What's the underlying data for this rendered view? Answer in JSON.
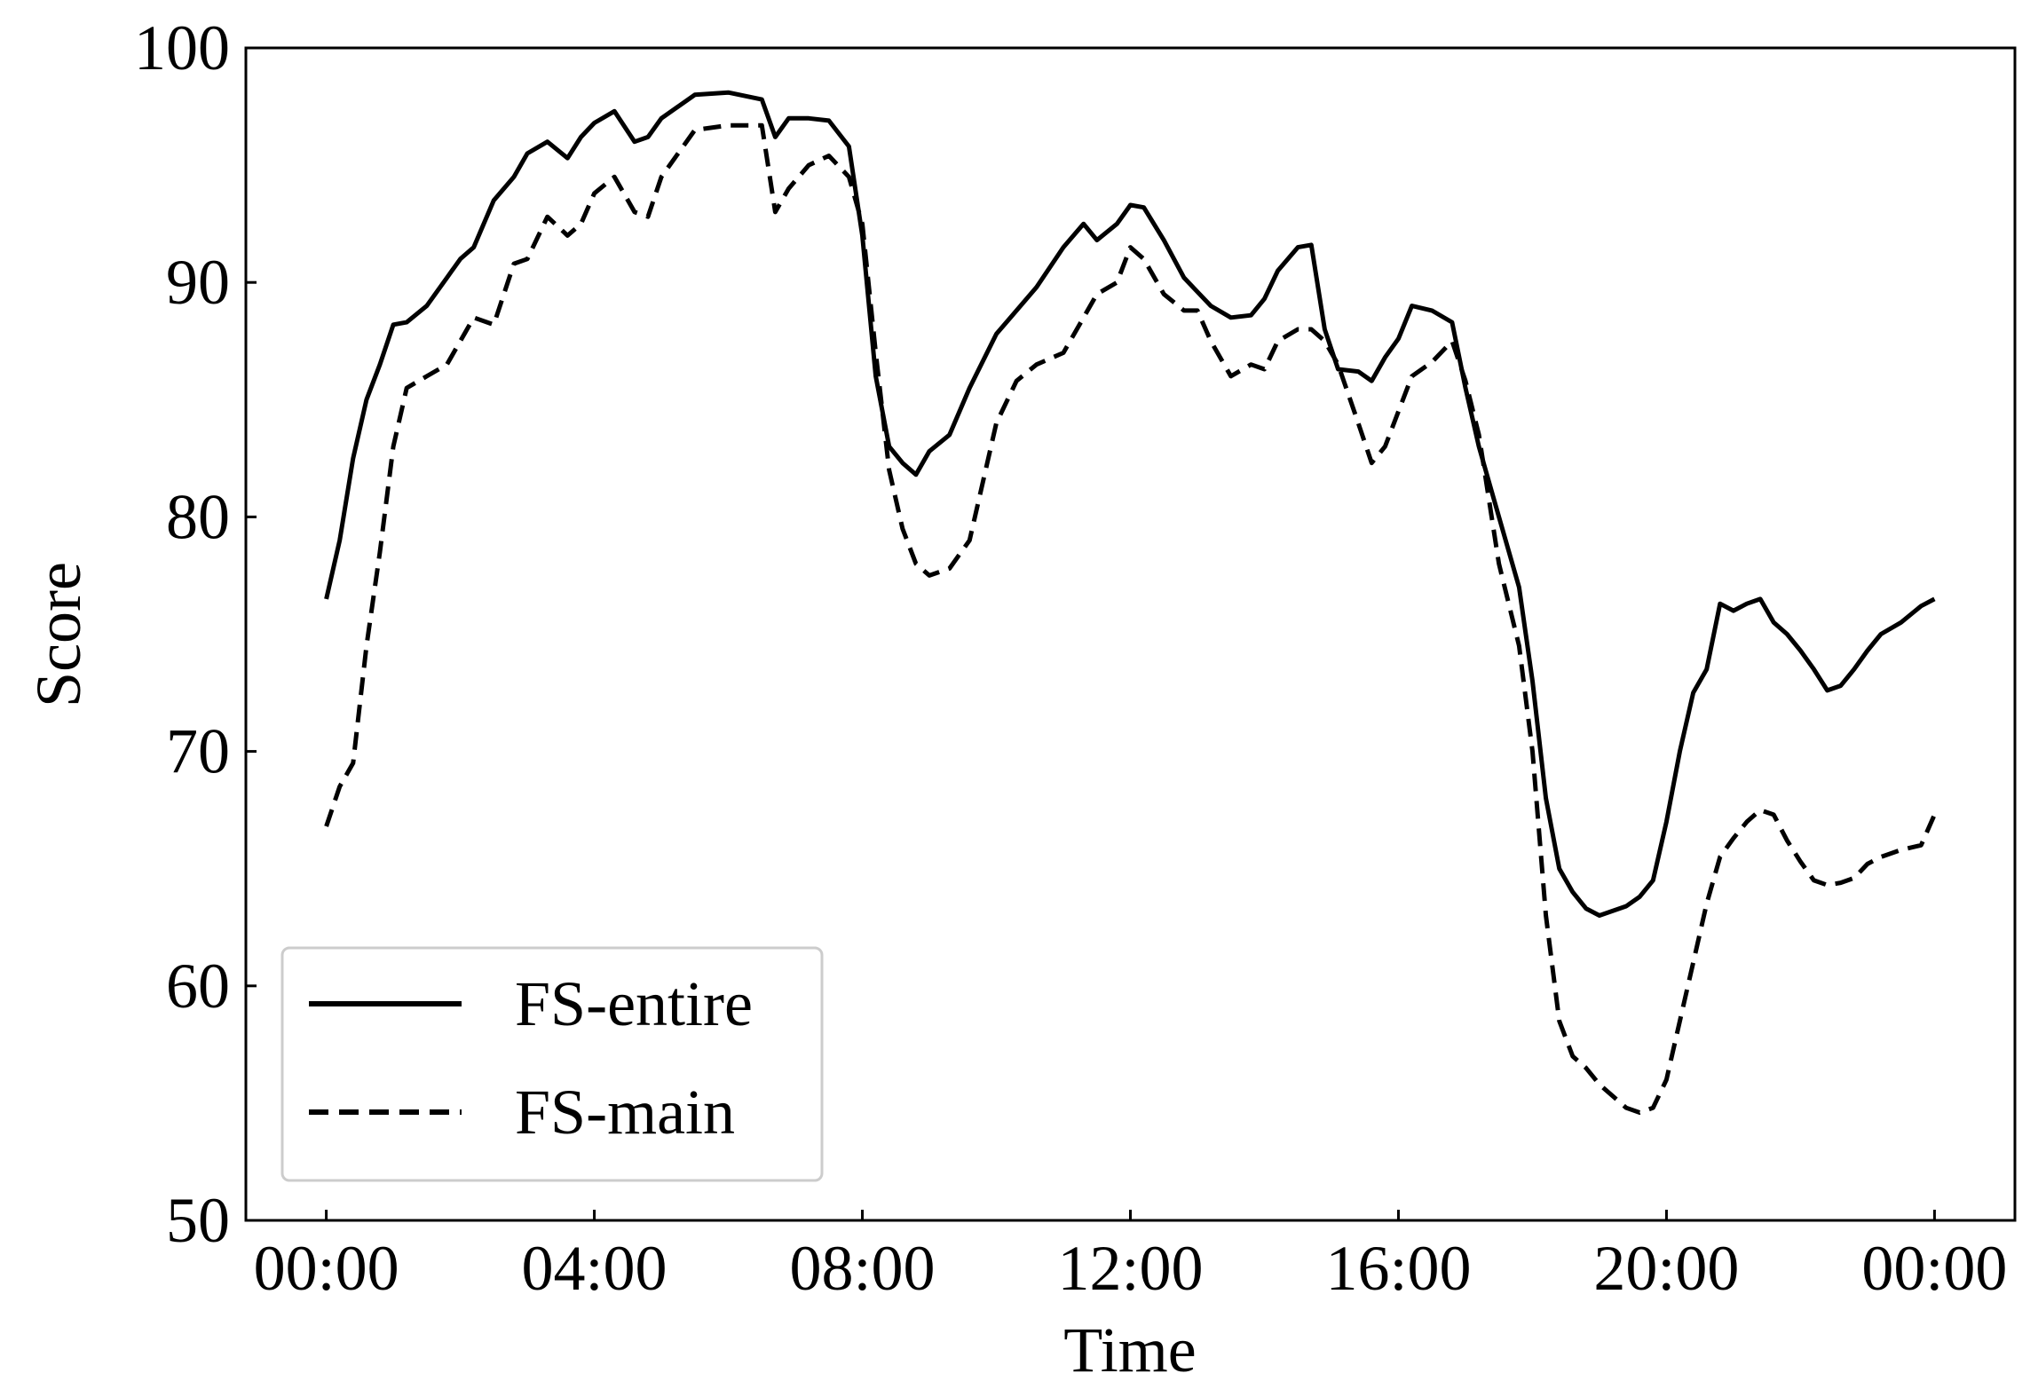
{
  "chart_data": {
    "type": "line",
    "xlabel": "Time",
    "ylabel": "Score",
    "x_ticks": [
      "00:00",
      "04:00",
      "08:00",
      "12:00",
      "16:00",
      "20:00",
      "00:00"
    ],
    "x_tick_hours": [
      0,
      4,
      8,
      12,
      16,
      20,
      24
    ],
    "xlim": [
      -1.2,
      25.2
    ],
    "ylim": [
      50,
      100
    ],
    "y_ticks": [
      "50",
      "60",
      "70",
      "80",
      "90",
      "100"
    ],
    "y_tick_values": [
      50,
      60,
      70,
      80,
      90,
      100
    ],
    "grid": false,
    "legend_position": "lower-left",
    "series": [
      {
        "name": "FS-entire",
        "style": "solid",
        "color": "#000000",
        "x": [
          0,
          0.2,
          0.4,
          0.6,
          0.8,
          1.0,
          1.2,
          1.5,
          1.8,
          2.0,
          2.2,
          2.5,
          2.8,
          3.0,
          3.3,
          3.6,
          3.8,
          4.0,
          4.3,
          4.6,
          4.8,
          5.0,
          5.5,
          6.0,
          6.5,
          6.7,
          6.9,
          7.2,
          7.5,
          7.8,
          8.0,
          8.2,
          8.4,
          8.6,
          8.8,
          9.0,
          9.3,
          9.6,
          10.0,
          10.3,
          10.6,
          11.0,
          11.3,
          11.5,
          11.8,
          12.0,
          12.2,
          12.5,
          12.8,
          13.0,
          13.2,
          13.5,
          13.8,
          14.0,
          14.2,
          14.5,
          14.7,
          14.9,
          15.1,
          15.4,
          15.6,
          15.8,
          16.0,
          16.2,
          16.5,
          16.8,
          17.0,
          17.2,
          17.5,
          17.8,
          18.0,
          18.2,
          18.4,
          18.6,
          18.8,
          19.0,
          19.2,
          19.4,
          19.6,
          19.8,
          20.0,
          20.2,
          20.4,
          20.6,
          20.8,
          21.0,
          21.2,
          21.4,
          21.6,
          21.8,
          22.0,
          22.2,
          22.4,
          22.6,
          22.8,
          23.0,
          23.2,
          23.5,
          23.8,
          24.0
        ],
        "values": [
          76.5,
          79,
          82.5,
          85,
          86.5,
          88.2,
          88.3,
          89,
          90.2,
          91,
          91.5,
          93.5,
          94.5,
          95.5,
          96,
          95.3,
          96.2,
          96.8,
          97.3,
          96,
          96.2,
          97,
          98,
          98.1,
          97.8,
          96.2,
          97,
          97,
          96.9,
          95.8,
          92,
          86,
          83,
          82.3,
          81.8,
          82.8,
          83.5,
          85.5,
          87.8,
          88.8,
          89.8,
          91.5,
          92.5,
          91.8,
          92.5,
          93.3,
          93.2,
          91.8,
          90.2,
          89.6,
          89,
          88.5,
          88.6,
          89.3,
          90.5,
          91.5,
          91.6,
          88,
          86.3,
          86.2,
          85.8,
          86.8,
          87.6,
          89,
          88.8,
          88.3,
          85.5,
          83,
          80,
          77,
          73,
          68,
          65,
          64,
          63.3,
          63,
          63.2,
          63.4,
          63.8,
          64.5,
          67,
          70,
          72.5,
          73.5,
          76.3,
          76,
          76.3,
          76.5,
          75.5,
          75,
          74.3,
          73.5,
          72.6,
          72.8,
          73.5,
          74.3,
          75,
          75.5,
          76.2,
          76.5
        ]
      },
      {
        "name": "FS-main",
        "style": "dashed",
        "color": "#000000",
        "x": [
          0,
          0.2,
          0.4,
          0.6,
          0.8,
          1.0,
          1.2,
          1.5,
          1.8,
          2.0,
          2.2,
          2.5,
          2.8,
          3.0,
          3.3,
          3.6,
          3.8,
          4.0,
          4.3,
          4.6,
          4.8,
          5.0,
          5.5,
          6.0,
          6.5,
          6.7,
          6.9,
          7.2,
          7.5,
          7.8,
          8.0,
          8.2,
          8.4,
          8.6,
          8.8,
          9.0,
          9.3,
          9.6,
          10.0,
          10.3,
          10.6,
          11.0,
          11.3,
          11.5,
          11.8,
          12.0,
          12.2,
          12.5,
          12.8,
          13.0,
          13.2,
          13.5,
          13.8,
          14.0,
          14.2,
          14.5,
          14.7,
          14.9,
          15.1,
          15.4,
          15.6,
          15.8,
          16.0,
          16.2,
          16.5,
          16.8,
          17.0,
          17.2,
          17.5,
          17.8,
          18.0,
          18.2,
          18.4,
          18.6,
          18.8,
          19.0,
          19.2,
          19.4,
          19.6,
          19.8,
          20.0,
          20.2,
          20.4,
          20.6,
          20.8,
          21.0,
          21.2,
          21.4,
          21.6,
          21.8,
          22.0,
          22.2,
          22.4,
          22.6,
          22.8,
          23.0,
          23.2,
          23.5,
          23.8,
          24.0
        ],
        "values": [
          66.8,
          68.5,
          69.5,
          74.5,
          78.5,
          83,
          85.5,
          86,
          86.5,
          87.5,
          88.5,
          88.2,
          90.8,
          91,
          92.8,
          92,
          92.5,
          93.8,
          94.5,
          93,
          92.8,
          94.5,
          96.5,
          96.7,
          96.7,
          93,
          94,
          95,
          95.4,
          94.5,
          92.5,
          87,
          82,
          79.5,
          78,
          77.5,
          77.8,
          79,
          84,
          85.8,
          86.5,
          87,
          88.5,
          89.5,
          90,
          91.5,
          91,
          89.5,
          88.8,
          88.8,
          87.5,
          86,
          86.5,
          86.3,
          87.5,
          88,
          88,
          87.5,
          86.5,
          84,
          82.3,
          83,
          84.5,
          86,
          86.6,
          87.5,
          85.8,
          83.5,
          78,
          74.5,
          70,
          63,
          58.5,
          57,
          56.5,
          55.8,
          55.3,
          54.8,
          54.6,
          54.8,
          56,
          58.5,
          61,
          63.5,
          65.5,
          66.3,
          67,
          67.5,
          67.3,
          66.2,
          65.3,
          64.5,
          64.3,
          64.4,
          64.6,
          65.2,
          65.5,
          65.8,
          66,
          67.3
        ]
      }
    ]
  }
}
